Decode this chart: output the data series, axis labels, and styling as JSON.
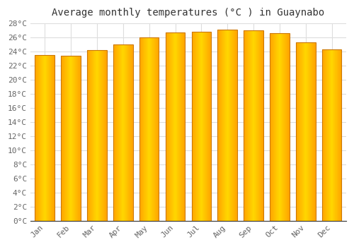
{
  "title": "Average monthly temperatures (°C ) in Guaynabo",
  "months": [
    "Jan",
    "Feb",
    "Mar",
    "Apr",
    "May",
    "Jun",
    "Jul",
    "Aug",
    "Sep",
    "Oct",
    "Nov",
    "Dec"
  ],
  "values": [
    23.5,
    23.4,
    24.2,
    25.0,
    26.0,
    26.7,
    26.8,
    27.1,
    27.0,
    26.6,
    25.3,
    24.3
  ],
  "bar_color_center": "#FFD700",
  "bar_color_edge": "#FFA500",
  "bar_border_color": "#CC7700",
  "ylim": [
    0,
    28
  ],
  "ytick_step": 2,
  "background_color": "#ffffff",
  "plot_bg_color": "#ffffff",
  "grid_color": "#dddddd",
  "title_fontsize": 10,
  "tick_fontsize": 8,
  "font_family": "monospace",
  "title_color": "#333333",
  "tick_color": "#666666"
}
